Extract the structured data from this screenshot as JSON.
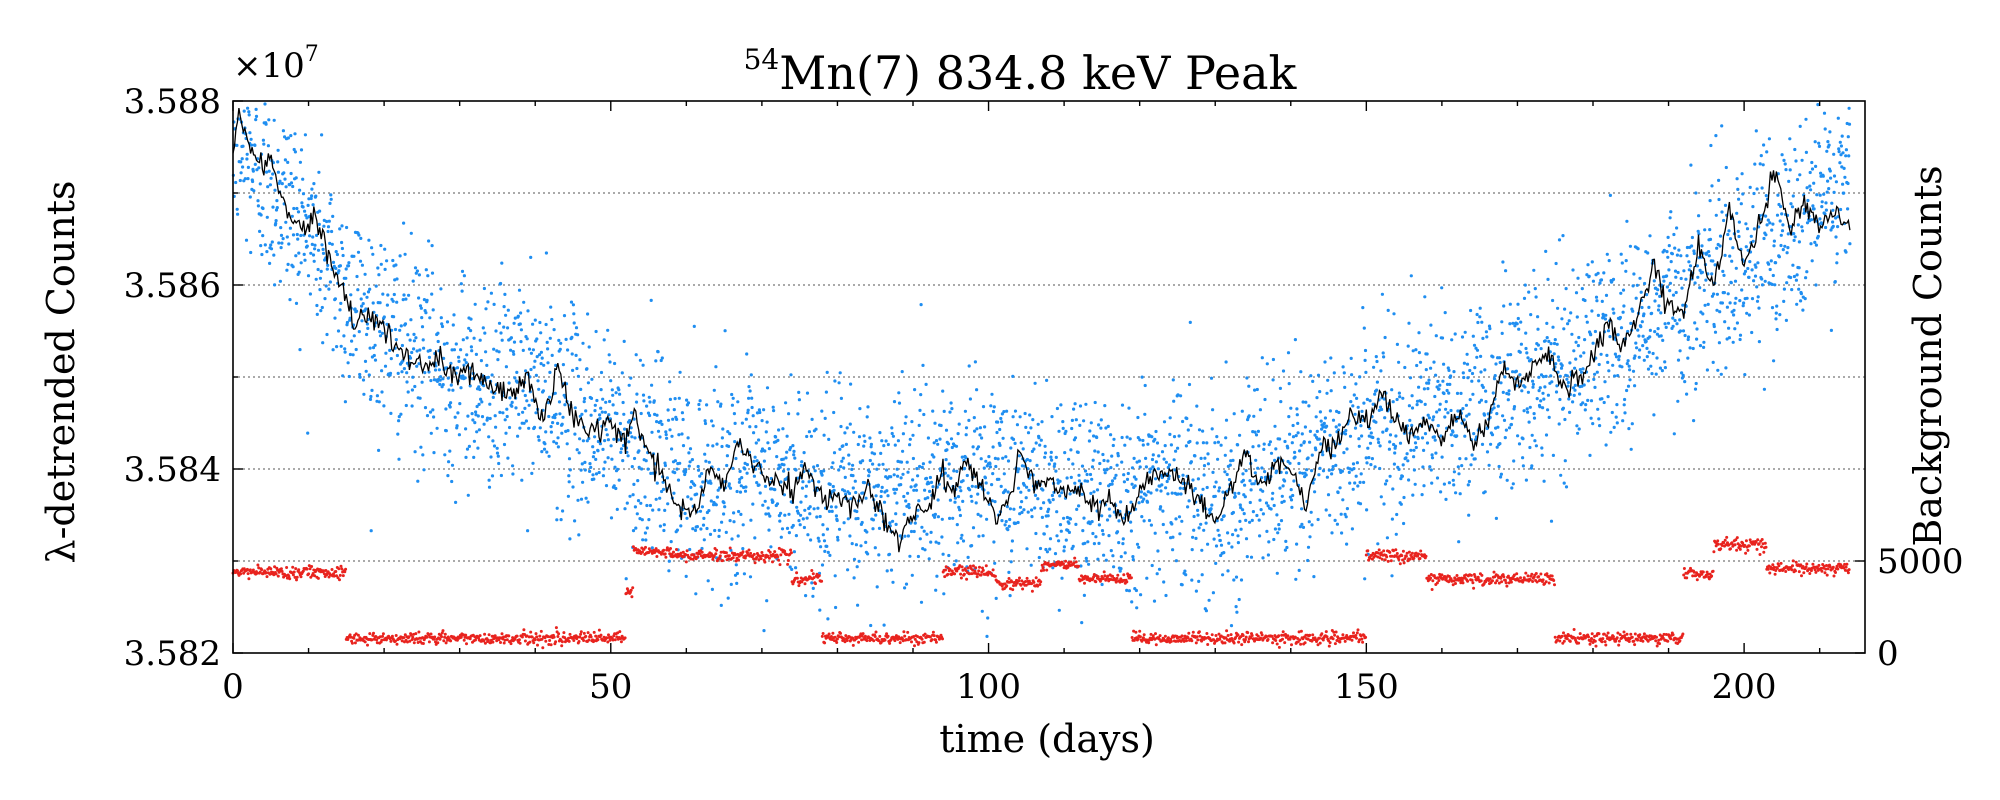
{
  "chart_data": {
    "type": "scatter",
    "title": "Mn(7) 834.8 keV Peak",
    "title_superscript": "54",
    "xlabel": "time (days)",
    "ylabel": "λ-detrended Counts",
    "ylabel_right": "Background Counts",
    "y_offset_label": "×10",
    "y_offset_exponent": "7",
    "xlim": [
      0,
      216
    ],
    "ylim": [
      3.582,
      3.588
    ],
    "y_right_lim": [
      0,
      30000
    ],
    "x_ticks": [
      0,
      50,
      100,
      150,
      200
    ],
    "y_ticks": [
      "3.582",
      "3.584",
      "3.586",
      "3.588"
    ],
    "y_tick_values": [
      3.582,
      3.584,
      3.586,
      3.588
    ],
    "y_right_ticks": [
      0,
      5000
    ],
    "y_gridlines": [
      3.583,
      3.584,
      3.585,
      3.586,
      3.587
    ],
    "series": [
      {
        "name": "λ-detrended counts (raw)",
        "kind": "scatter",
        "color": "#1f8ef1",
        "trend_knots": [
          [
            0,
            3.5876
          ],
          [
            5,
            3.5871
          ],
          [
            10,
            3.5866
          ],
          [
            15,
            3.5859
          ],
          [
            20,
            3.5855
          ],
          [
            25,
            3.5852
          ],
          [
            30,
            3.585
          ],
          [
            40,
            3.5849
          ],
          [
            45,
            3.5846
          ],
          [
            50,
            3.5844
          ],
          [
            55,
            3.5842
          ],
          [
            60,
            3.5839
          ],
          [
            70,
            3.5839
          ],
          [
            80,
            3.5837
          ],
          [
            85,
            3.5837
          ],
          [
            90,
            3.5839
          ],
          [
            100,
            3.5839
          ],
          [
            110,
            3.5838
          ],
          [
            120,
            3.5838
          ],
          [
            125,
            3.5839
          ],
          [
            130,
            3.5837
          ],
          [
            140,
            3.584
          ],
          [
            150,
            3.5844
          ],
          [
            160,
            3.5846
          ],
          [
            170,
            3.5849
          ],
          [
            180,
            3.5853
          ],
          [
            185,
            3.5855
          ],
          [
            190,
            3.5858
          ],
          [
            200,
            3.5863
          ],
          [
            210,
            3.5869
          ],
          [
            215,
            3.5871
          ]
        ],
        "noise_sd": 0.00055,
        "n_points": 4200
      },
      {
        "name": "λ-detrended counts (smoothed)",
        "kind": "line",
        "color": "#000000",
        "knots": [
          [
            0,
            3.5874
          ],
          [
            0.8,
            3.5879
          ],
          [
            2,
            3.5875
          ],
          [
            4,
            3.5873
          ],
          [
            5,
            3.5874
          ],
          [
            7,
            3.5868
          ],
          [
            9,
            3.5866
          ],
          [
            11,
            3.5867
          ],
          [
            13,
            3.5862
          ],
          [
            15,
            3.5859
          ],
          [
            16,
            3.5855
          ],
          [
            18,
            3.5857
          ],
          [
            20,
            3.5856
          ],
          [
            22,
            3.5853
          ],
          [
            25,
            3.5851
          ],
          [
            27,
            3.5852
          ],
          [
            29,
            3.585
          ],
          [
            31,
            3.5851
          ],
          [
            34,
            3.5849
          ],
          [
            36,
            3.5848
          ],
          [
            38,
            3.5849
          ],
          [
            39,
            3.585
          ],
          [
            41,
            3.5845
          ],
          [
            43,
            3.5851
          ],
          [
            45,
            3.5846
          ],
          [
            47,
            3.5844
          ],
          [
            50,
            3.5845
          ],
          [
            52,
            3.5843
          ],
          [
            53,
            3.5846
          ],
          [
            55,
            3.5842
          ],
          [
            57,
            3.5839
          ],
          [
            59,
            3.5836
          ],
          [
            61,
            3.5835
          ],
          [
            63,
            3.584
          ],
          [
            65,
            3.5838
          ],
          [
            67,
            3.5843
          ],
          [
            69,
            3.584
          ],
          [
            71,
            3.5839
          ],
          [
            74,
            3.5838
          ],
          [
            76,
            3.584
          ],
          [
            78,
            3.5837
          ],
          [
            80,
            3.5837
          ],
          [
            82,
            3.5836
          ],
          [
            84,
            3.5838
          ],
          [
            86,
            3.5835
          ],
          [
            88,
            3.5832
          ],
          [
            90,
            3.5835
          ],
          [
            92,
            3.5836
          ],
          [
            94,
            3.584
          ],
          [
            95,
            3.5837
          ],
          [
            97,
            3.5841
          ],
          [
            99,
            3.5838
          ],
          [
            101,
            3.5835
          ],
          [
            103,
            3.5837
          ],
          [
            104,
            3.5842
          ],
          [
            106,
            3.5838
          ],
          [
            108,
            3.5839
          ],
          [
            110,
            3.5837
          ],
          [
            112,
            3.5838
          ],
          [
            114,
            3.5836
          ],
          [
            116,
            3.5837
          ],
          [
            118,
            3.5834
          ],
          [
            120,
            3.5838
          ],
          [
            122,
            3.5839
          ],
          [
            124,
            3.584
          ],
          [
            126,
            3.5838
          ],
          [
            128,
            3.5837
          ],
          [
            130,
            3.5834
          ],
          [
            132,
            3.5838
          ],
          [
            134,
            3.5842
          ],
          [
            136,
            3.5838
          ],
          [
            138,
            3.5841
          ],
          [
            140,
            3.584
          ],
          [
            142,
            3.5836
          ],
          [
            144,
            3.5842
          ],
          [
            146,
            3.5843
          ],
          [
            148,
            3.5846
          ],
          [
            150,
            3.5845
          ],
          [
            152,
            3.5848
          ],
          [
            154,
            3.5845
          ],
          [
            156,
            3.5844
          ],
          [
            158,
            3.5845
          ],
          [
            160,
            3.5843
          ],
          [
            162,
            3.5846
          ],
          [
            164,
            3.5843
          ],
          [
            166,
            3.5845
          ],
          [
            168,
            3.5851
          ],
          [
            170,
            3.5849
          ],
          [
            172,
            3.5851
          ],
          [
            174,
            3.5853
          ],
          [
            176,
            3.5849
          ],
          [
            178,
            3.585
          ],
          [
            180,
            3.5852
          ],
          [
            182,
            3.5856
          ],
          [
            184,
            3.5853
          ],
          [
            186,
            3.5857
          ],
          [
            188,
            3.5862
          ],
          [
            190,
            3.5858
          ],
          [
            192,
            3.5857
          ],
          [
            194,
            3.5864
          ],
          [
            196,
            3.586
          ],
          [
            198,
            3.5868
          ],
          [
            200,
            3.5862
          ],
          [
            202,
            3.5866
          ],
          [
            204,
            3.5873
          ],
          [
            206,
            3.5866
          ],
          [
            208,
            3.5869
          ],
          [
            210,
            3.5866
          ],
          [
            212,
            3.5868
          ],
          [
            214,
            3.5867
          ]
        ]
      },
      {
        "name": "Background Counts",
        "kind": "scatter",
        "axis": "right",
        "color": "#e8231e",
        "segments": [
          [
            0,
            15,
            4400
          ],
          [
            15,
            52,
            800
          ],
          [
            52,
            53,
            3300
          ],
          [
            53,
            58,
            5500
          ],
          [
            58,
            74,
            5300
          ],
          [
            74,
            78,
            4000
          ],
          [
            78,
            94,
            800
          ],
          [
            94,
            101,
            4400
          ],
          [
            101,
            107,
            3800
          ],
          [
            107,
            112,
            4800
          ],
          [
            112,
            119,
            4000
          ],
          [
            119,
            150,
            800
          ],
          [
            150,
            158,
            5300
          ],
          [
            158,
            175,
            4000
          ],
          [
            175,
            192,
            800
          ],
          [
            192,
            196,
            4300
          ],
          [
            196,
            203,
            5900
          ],
          [
            203,
            214,
            4600
          ]
        ],
        "noise_sd": 160
      }
    ]
  }
}
